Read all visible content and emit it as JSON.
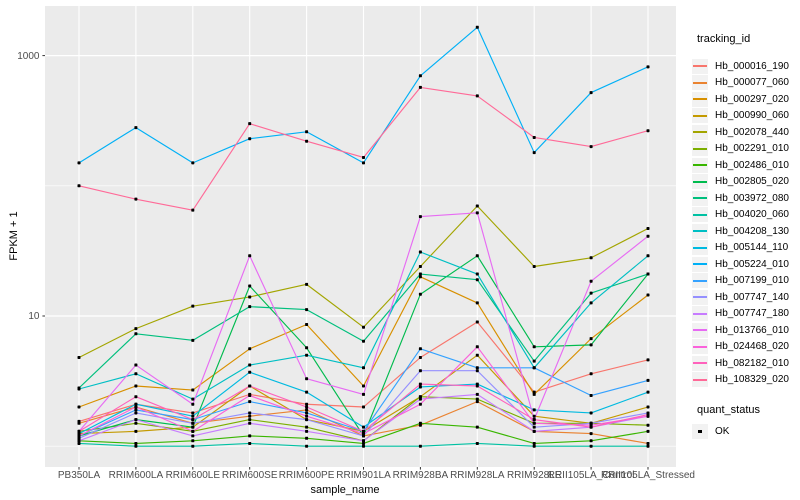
{
  "chart_data": {
    "type": "line",
    "title": "",
    "xlabel": "sample_name",
    "ylabel": "FPKM + 1",
    "x_categories": [
      "PB350LA",
      "RRIM600LA",
      "RRIM600LE",
      "RRIM600SE",
      "RRIM600PE",
      "RRIM901LA",
      "RRIM928BA",
      "RRIM928LA",
      "RRIM928LE",
      "RRII105LA_Control",
      "RRII105LA_Stressed"
    ],
    "y_scale": "log10",
    "y_tick_labels": [
      "10",
      "1000"
    ],
    "y_tick_values": [
      10,
      1000
    ],
    "y_minor_values": [
      1,
      100
    ],
    "ylim": [
      0.7,
      2400
    ],
    "grid": true,
    "legend_position": "right",
    "legend_title": "tracking_id",
    "panel_bg": "#EBEBEB",
    "grid_color": "#FFFFFF",
    "tick_label_color": "#4D4D4D",
    "point_marker": {
      "legend_title": "quant_status",
      "label": "OK",
      "color": "#000000"
    },
    "series": [
      {
        "name": "Hb_000016_190",
        "color": "#F8766D",
        "values": [
          1.55,
          2.1,
          1.8,
          2.5,
          2.1,
          2.0,
          4.8,
          9.0,
          2.6,
          3.6,
          4.6
        ]
      },
      {
        "name": "Hb_000077_060",
        "color": "#EA8331",
        "values": [
          1.5,
          2.0,
          1.5,
          1.7,
          1.9,
          1.2,
          1.45,
          2.2,
          1.3,
          1.25,
          1.05
        ]
      },
      {
        "name": "Hb_000297_020",
        "color": "#D89000",
        "values": [
          2.0,
          2.9,
          2.7,
          5.6,
          8.6,
          2.9,
          20,
          12.6,
          2.5,
          6.7,
          14.5
        ]
      },
      {
        "name": "Hb_000990_060",
        "color": "#C49A00",
        "values": [
          1.25,
          1.3,
          1.4,
          2.9,
          1.6,
          1.3,
          2.4,
          5.0,
          1.7,
          1.5,
          2.0
        ]
      },
      {
        "name": "Hb_002078_440",
        "color": "#A3A500",
        "values": [
          4.8,
          8.0,
          11.9,
          14,
          17.5,
          8.2,
          24,
          70,
          24,
          28,
          47
        ]
      },
      {
        "name": "Hb_002291_010",
        "color": "#7CAE00",
        "values": [
          1.3,
          1.5,
          1.3,
          1.6,
          1.4,
          1.1,
          2.4,
          2.3,
          1.5,
          1.5,
          1.45
        ]
      },
      {
        "name": "Hb_002486_010",
        "color": "#39B600",
        "values": [
          1.1,
          1.05,
          1.1,
          1.2,
          1.15,
          1.05,
          1.5,
          1.4,
          1.05,
          1.1,
          1.3
        ]
      },
      {
        "name": "Hb_002805_020",
        "color": "#00BB4E",
        "values": [
          1.2,
          1.6,
          1.4,
          17,
          5.7,
          1.2,
          14.7,
          29,
          5.8,
          6.0,
          21
        ]
      },
      {
        "name": "Hb_003972_080",
        "color": "#00BF7D",
        "values": [
          2.8,
          7.3,
          6.5,
          11.8,
          11.2,
          6.4,
          21,
          19,
          4.5,
          15,
          21
        ]
      },
      {
        "name": "Hb_004020_060",
        "color": "#00C1A3",
        "values": [
          1.05,
          1.0,
          1.0,
          1.05,
          1.0,
          1.0,
          1.0,
          1.05,
          1.0,
          1.0,
          1.0
        ]
      },
      {
        "name": "Hb_004208_130",
        "color": "#00BFC4",
        "values": [
          2.75,
          3.6,
          2.3,
          4.2,
          5.0,
          4.0,
          31,
          21,
          4.0,
          12.6,
          29
        ]
      },
      {
        "name": "Hb_005144_110",
        "color": "#00BAE0",
        "values": [
          1.25,
          2.1,
          1.7,
          3.7,
          2.6,
          1.4,
          2.85,
          3.0,
          1.9,
          1.8,
          2.6
        ]
      },
      {
        "name": "Hb_005224_010",
        "color": "#00B0F6",
        "values": [
          150,
          280,
          150,
          230,
          260,
          150,
          700,
          1650,
          180,
          520,
          820
        ]
      },
      {
        "name": "Hb_007199_010",
        "color": "#35A2FF",
        "values": [
          1.2,
          1.9,
          1.6,
          2.2,
          1.8,
          1.3,
          5.6,
          4.0,
          4.0,
          2.45,
          3.2
        ]
      },
      {
        "name": "Hb_007747_140",
        "color": "#9590FF",
        "values": [
          1.15,
          1.8,
          1.5,
          1.8,
          1.6,
          1.2,
          3.8,
          3.8,
          1.4,
          1.5,
          1.8
        ]
      },
      {
        "name": "Hb_007747_180",
        "color": "#C77CFF",
        "values": [
          1.1,
          1.6,
          1.2,
          1.5,
          1.3,
          1.1,
          2.3,
          2.5,
          1.3,
          1.4,
          1.7
        ]
      },
      {
        "name": "Hb_013766_010",
        "color": "#E76BF3",
        "values": [
          1.3,
          4.2,
          2.1,
          29,
          3.3,
          2.5,
          58,
          62,
          1.6,
          18.5,
          41
        ]
      },
      {
        "name": "Hb_024468_020",
        "color": "#FA62DB",
        "values": [
          1.2,
          2.0,
          1.3,
          2.45,
          1.7,
          1.25,
          2.1,
          5.8,
          1.5,
          1.45,
          1.7
        ]
      },
      {
        "name": "Hb_082182_010",
        "color": "#FF62BC",
        "values": [
          1.3,
          2.4,
          1.6,
          2.9,
          2.0,
          1.3,
          3.0,
          2.9,
          1.6,
          1.4,
          1.75
        ]
      },
      {
        "name": "Hb_108329_020",
        "color": "#FF6A98",
        "values": [
          100,
          79,
          65,
          300,
          220,
          165,
          570,
          490,
          235,
          200,
          265
        ]
      }
    ]
  }
}
